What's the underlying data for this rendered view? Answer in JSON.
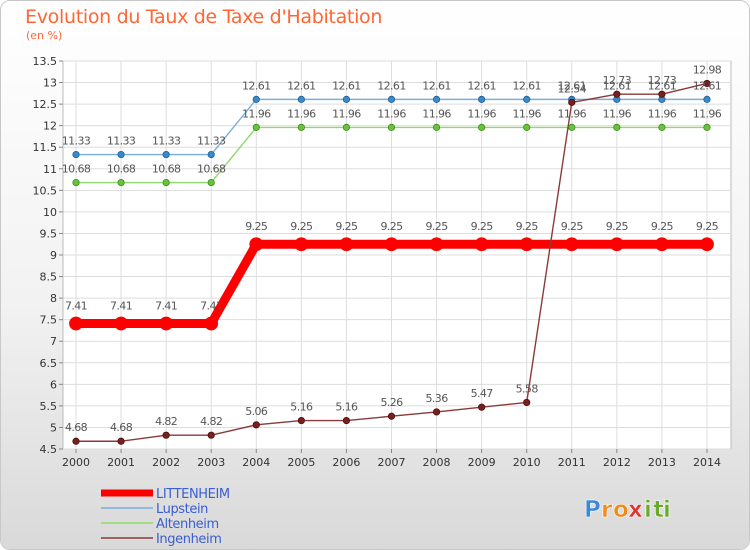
{
  "header": {
    "title": "Evolution du Taux de Taxe d'Habitation",
    "subtitle": "(en %)"
  },
  "brand": {
    "letters": [
      "P",
      "r",
      "o",
      "x",
      "i",
      "t",
      "i"
    ],
    "letter_colors": [
      "#3c88d8",
      "#f28a1a",
      "#f28a1a",
      "#e03030",
      "#6aaa2a",
      "#6aaa2a",
      "#6aaa2a"
    ]
  },
  "chart_data": {
    "type": "line",
    "title": "Evolution du Taux de Taxe d'Habitation",
    "subtitle": "(en %)",
    "xlabel": "",
    "ylabel": "",
    "x": [
      "2000",
      "2001",
      "2002",
      "2003",
      "2004",
      "2005",
      "2006",
      "2007",
      "2008",
      "2009",
      "2010",
      "2011",
      "2012",
      "2013",
      "2014"
    ],
    "ylim": [
      4.5,
      13.5
    ],
    "yticks": [
      "4.5",
      "5",
      "5.5",
      "6",
      "6.5",
      "7",
      "7.5",
      "8",
      "8.5",
      "9",
      "9.5",
      "10",
      "10.5",
      "11",
      "11.5",
      "12",
      "12.5",
      "13",
      "13.5"
    ],
    "grid": true,
    "legend_position": "bottom-left",
    "series": [
      {
        "name": "LITTENHEIM",
        "color": "#ff0000",
        "values": [
          7.41,
          7.41,
          7.41,
          7.41,
          9.25,
          9.25,
          9.25,
          9.25,
          9.25,
          9.25,
          9.25,
          9.25,
          9.25,
          9.25,
          9.25
        ],
        "labels": [
          "7.41",
          "7.41",
          "7.41",
          "7.41",
          "9.25",
          "9.25",
          "9.25",
          "9.25",
          "9.25",
          "9.25",
          "9.25",
          "9.25",
          "9.25",
          "9.25",
          "9.25"
        ]
      },
      {
        "name": "Lupstein",
        "color": "#3a8acb",
        "values": [
          11.33,
          11.33,
          11.33,
          11.33,
          12.61,
          12.61,
          12.61,
          12.61,
          12.61,
          12.61,
          12.61,
          12.61,
          12.61,
          12.61,
          12.61
        ],
        "labels": [
          "11.33",
          "11.33",
          "11.33",
          "11.33",
          "12.61",
          "12.61",
          "12.61",
          "12.61",
          "12.61",
          "12.61",
          "12.61",
          "12.61",
          "12.61",
          "12.61",
          "12.61"
        ]
      },
      {
        "name": "Altenheim",
        "color": "#66c43a",
        "values": [
          10.68,
          10.68,
          10.68,
          10.68,
          11.96,
          11.96,
          11.96,
          11.96,
          11.96,
          11.96,
          11.96,
          11.96,
          11.96,
          11.96,
          11.96
        ],
        "labels": [
          "10.68",
          "10.68",
          "10.68",
          "10.68",
          "11.96",
          "11.96",
          "11.96",
          "11.96",
          "11.96",
          "11.96",
          "11.96",
          "11.96",
          "11.96",
          "11.96",
          "11.96"
        ]
      },
      {
        "name": "Ingenheim",
        "color": "#8b3a3a",
        "values": [
          4.68,
          4.68,
          4.82,
          4.82,
          5.06,
          5.16,
          5.16,
          5.26,
          5.36,
          5.47,
          5.58,
          12.54,
          12.73,
          12.73,
          12.98
        ],
        "labels": [
          "4.68",
          "4.68",
          "4.82",
          "4.82",
          "5.06",
          "5.16",
          "5.16",
          "5.26",
          "5.36",
          "5.47",
          "5.58",
          "12.54",
          "12.73",
          "12.73",
          "12.98"
        ]
      }
    ]
  }
}
